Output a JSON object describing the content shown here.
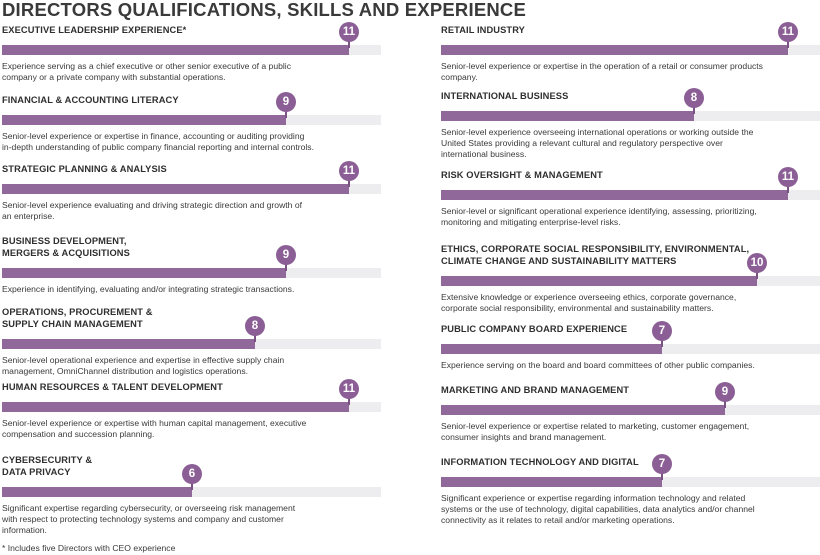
{
  "title": "DIRECTORS QUALIFICATIONS, SKILLS AND EXPERIENCE",
  "footnote": "*  Includes five Directors with CEO experience",
  "colors": {
    "bar": "#90689a",
    "marker": "#8b5f95",
    "track": "#ededf0"
  },
  "chart_data": {
    "type": "bar",
    "title": "DIRECTORS QUALIFICATIONS, SKILLS AND EXPERIENCE",
    "xlim": [
      0,
      12
    ],
    "categories": [
      "EXECUTIVE LEADERSHIP EXPERIENCE*",
      "FINANCIAL & ACCOUNTING LITERACY",
      "STRATEGIC PLANNING & ANALYSIS",
      "BUSINESS DEVELOPMENT, MERGERS & ACQUISITIONS",
      "OPERATIONS, PROCUREMENT & SUPPLY CHAIN MANAGEMENT",
      "HUMAN RESOURCES & TALENT DEVELOPMENT",
      "CYBERSECURITY & DATA PRIVACY",
      "RETAIL INDUSTRY",
      "INTERNATIONAL BUSINESS",
      "RISK OVERSIGHT & MANAGEMENT",
      "ETHICS, CORPORATE SOCIAL RESPONSIBILITY, ENVIRONMENTAL, CLIMATE CHANGE AND SUSTAINABILITY MATTERS",
      "PUBLIC COMPANY BOARD EXPERIENCE",
      "MARKETING AND BRAND MANAGEMENT",
      "INFORMATION TECHNOLOGY AND DIGITAL"
    ],
    "values": [
      11,
      9,
      11,
      9,
      8,
      11,
      6,
      11,
      8,
      11,
      10,
      7,
      9,
      7
    ]
  },
  "left_skills": [
    {
      "title_lines": [
        "EXECUTIVE LEADERSHIP EXPERIENCE*"
      ],
      "value": 11,
      "desc_lines": [
        "Experience serving as a chief executive or other senior executive of a public",
        "company or a private company with substantial operations."
      ]
    },
    {
      "title_lines": [
        "FINANCIAL & ACCOUNTING LITERACY"
      ],
      "value": 9,
      "desc_lines": [
        "Senior-level experience or expertise in finance, accounting or auditing providing",
        "in-depth understanding of public company financial reporting and internal controls."
      ]
    },
    {
      "title_lines": [
        "STRATEGIC PLANNING & ANALYSIS"
      ],
      "value": 11,
      "desc_lines": [
        "Senior-level experience evaluating and driving strategic direction and growth of",
        "an enterprise."
      ]
    },
    {
      "title_lines": [
        "BUSINESS DEVELOPMENT,",
        "MERGERS & ACQUISITIONS"
      ],
      "value": 9,
      "desc_lines": [
        "Experience in identifying, evaluating and/or integrating strategic transactions."
      ]
    },
    {
      "title_lines": [
        "OPERATIONS, PROCUREMENT &",
        "SUPPLY CHAIN MANAGEMENT"
      ],
      "value": 8,
      "desc_lines": [
        "Senior-level operational experience and expertise in effective supply chain",
        "management, OmniChannel distribution and logistics operations."
      ]
    },
    {
      "title_lines": [
        "HUMAN RESOURCES & TALENT DEVELOPMENT"
      ],
      "value": 11,
      "desc_lines": [
        "Senior-level experience or expertise with human capital management, executive",
        "compensation and succession planning."
      ]
    },
    {
      "title_lines": [
        "CYBERSECURITY &",
        "DATA PRIVACY"
      ],
      "value": 6,
      "desc_lines": [
        "Significant expertise regarding cybersecurity, or overseeing risk management",
        "with respect to protecting technology systems and company and customer",
        "information."
      ]
    }
  ],
  "right_skills": [
    {
      "title_lines": [
        "RETAIL INDUSTRY"
      ],
      "value": 11,
      "desc_lines": [
        "Senior-level experience or expertise in the operation of a retail or consumer products",
        "company."
      ]
    },
    {
      "title_lines": [
        "INTERNATIONAL BUSINESS"
      ],
      "value": 8,
      "desc_lines": [
        "Senior-level experience overseeing international operations or working outside the",
        "United States providing a relevant cultural and regulatory perspective over",
        "international business."
      ]
    },
    {
      "title_lines": [
        "RISK OVERSIGHT & MANAGEMENT"
      ],
      "value": 11,
      "desc_lines": [
        "Senior-level or significant operational experience identifying, assessing, prioritizing,",
        "monitoring and mitigating enterprise-level risks."
      ]
    },
    {
      "title_lines": [
        "ETHICS, CORPORATE SOCIAL RESPONSIBILITY, ENVIRONMENTAL,",
        "CLIMATE CHANGE AND SUSTAINABILITY MATTERS"
      ],
      "value": 10,
      "desc_lines": [
        "Extensive knowledge or experience overseeing ethics, corporate governance,",
        "corporate social responsibility, environmental and sustainability matters."
      ]
    },
    {
      "title_lines": [
        "PUBLIC COMPANY BOARD EXPERIENCE"
      ],
      "value": 7,
      "desc_lines": [
        "Experience serving on the board and board committees of other public companies."
      ]
    },
    {
      "title_lines": [
        "MARKETING AND BRAND MANAGEMENT"
      ],
      "value": 9,
      "desc_lines": [
        "Senior-level experience or expertise related to marketing, customer engagement,",
        "consumer insights and brand management."
      ]
    },
    {
      "title_lines": [
        "INFORMATION TECHNOLOGY AND DIGITAL"
      ],
      "value": 7,
      "desc_lines": [
        "Significant experience or expertise regarding information technology and related",
        "systems or the use of technology, digital capabilities, data analytics and/or channel",
        "connectivity as it relates to retail and/or marketing operations."
      ]
    }
  ]
}
